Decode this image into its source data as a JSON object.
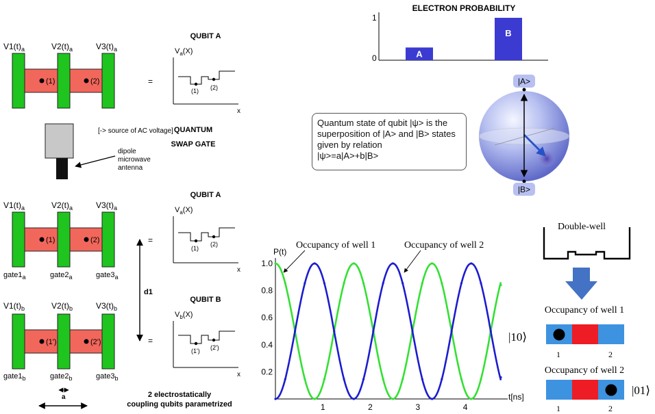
{
  "device": {
    "gate_top_a": {
      "v1": "V1(t)",
      "v2": "V2(t)",
      "v3": "V3(t)",
      "sub": "a"
    },
    "gate_mid_a": {
      "v1": "V1(t)",
      "v2": "V2(t)",
      "v3": "V3(t)",
      "sub": "a"
    },
    "gate_bot_b": {
      "v1": "V1(t)",
      "v2": "V2(t)",
      "v3": "V3(t)",
      "sub": "b"
    },
    "gate_names_a": {
      "g1": "gate1",
      "g2": "gate2",
      "g3": "gate3",
      "sub": "a"
    },
    "gate_names_b": {
      "g1": "gate1",
      "g2": "gate2",
      "g3": "gate3",
      "sub": "b"
    },
    "dots_a": {
      "d1": "(1)",
      "d2": "(2)"
    },
    "dots_b": {
      "d1": "(1')",
      "d2": "(2')"
    },
    "ac_source_label": "[-> source of AC voltage]",
    "antenna_label": [
      "dipole",
      "microwave",
      "antenna"
    ],
    "dim_a": "a",
    "dim_d1": "d1"
  },
  "potential_plots": {
    "top": {
      "title": "QUBIT A",
      "ylabel": "V",
      "ysub": "a",
      "yarg": "(X)",
      "xlabel": "x",
      "w1": "(1)",
      "w2": "(2)",
      "eq": "="
    },
    "mid": {
      "title": "QUBIT A",
      "ylabel": "V",
      "ysub": "a",
      "yarg": "(X)",
      "xlabel": "x",
      "w1": "(1)",
      "w2": "(2)",
      "eq": "="
    },
    "bot": {
      "title": "QUBIT B",
      "ylabel": "V",
      "ysub": "b",
      "yarg": "(X)",
      "xlabel": "x",
      "w1": "(1')",
      "w2": "(2')",
      "eq": "="
    }
  },
  "gate_title": [
    "QUANTUM",
    "SWAP GATE"
  ],
  "caption": [
    "2 electrostatically",
    "coupling qubits parametrized"
  ],
  "probability_chart": {
    "title": "ELECTRON PROBABILITY",
    "ticks": [
      "1",
      "0"
    ],
    "bars": [
      {
        "label": "A",
        "value": 0.3
      },
      {
        "label": "B",
        "value": 1.0
      }
    ],
    "color": "#3b3bd1"
  },
  "bloch": {
    "top_label": "|A>",
    "bottom_label": "|B>",
    "callout": [
      "Quantum state of qubit |ψ> is the",
      "superposition of |A> and |B> states",
      "given by relation",
      "|ψ>=a|A>+b|B>"
    ]
  },
  "chart_data": {
    "type": "line",
    "ylabel": "P(t)",
    "xlabel": "t[ns]",
    "xlim": [
      0,
      4.75
    ],
    "ylim": [
      0,
      1.0
    ],
    "xticks": [
      "1",
      "2",
      "3",
      "4"
    ],
    "yticks": [
      "1.0",
      "0.8",
      "0.6",
      "0.4",
      "0.2"
    ],
    "period": 1.65,
    "x": [
      0,
      0.206,
      0.4125,
      0.619,
      0.825,
      1.031,
      1.2375,
      1.444,
      1.65,
      1.856,
      2.0625,
      2.269,
      2.475,
      2.681,
      2.8875,
      3.094,
      3.3,
      3.506,
      3.7125,
      3.919,
      4.125,
      4.331,
      4.5375,
      4.75
    ],
    "series": [
      {
        "name": "Occupancy of well 1",
        "color": "#33e033",
        "values": [
          1.0,
          0.854,
          0.5,
          0.146,
          0.0,
          0.146,
          0.5,
          0.854,
          1.0,
          0.854,
          0.5,
          0.146,
          0.0,
          0.146,
          0.5,
          0.854,
          1.0,
          0.854,
          0.5,
          0.146,
          0.0,
          0.146,
          0.5,
          0.84
        ]
      },
      {
        "name": "Occupancy of well 2",
        "color": "#1c1ccf",
        "values": [
          0.0,
          0.146,
          0.5,
          0.854,
          1.0,
          0.854,
          0.5,
          0.146,
          0.0,
          0.146,
          0.5,
          0.854,
          1.0,
          0.854,
          0.5,
          0.146,
          0.0,
          0.146,
          0.5,
          0.854,
          1.0,
          0.854,
          0.5,
          0.16
        ]
      }
    ],
    "annotations": [
      "Occupancy of well 1",
      "Occupancy of well 2"
    ]
  },
  "double_well": {
    "title": "Double-well",
    "state1_title": "Occupancy of well 1",
    "state1_ket": "|10⟩",
    "state2_title": "Occupancy of well 2",
    "state2_ket": "|01⟩",
    "well_labels": [
      "1",
      "2"
    ]
  },
  "colors": {
    "gate_green": "#1fc41f",
    "channel_red": "#f2675c",
    "cell_blue": "#3d93e0",
    "cell_red": "#ee1c24",
    "arrow_blue": "#4472c4"
  }
}
